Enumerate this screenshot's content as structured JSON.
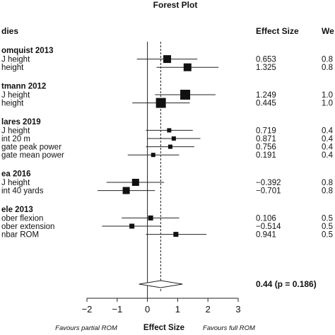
{
  "chart_data": {
    "type": "forest",
    "title": "Forest Plot",
    "columns": {
      "studies": "dies",
      "effect_size": "Effect Size",
      "weight": "We"
    },
    "xlabel": "Effect Size",
    "favours_left": "Favours partial ROM",
    "favours_right": "Favours full ROM",
    "xlim": [
      -2,
      3
    ],
    "xticks": [
      -2,
      -1,
      0,
      1,
      2,
      3
    ],
    "xtick_labels": [
      "−2",
      "−1",
      "0",
      "1",
      "2",
      "3"
    ],
    "summary": {
      "estimate": 0.44,
      "ci": [
        -0.28,
        1.16
      ],
      "label": "0.44 (p = 0.186)"
    },
    "groups": [
      {
        "study": "omquist 2013",
        "rows": [
          {
            "label": "J height",
            "es": 0.653,
            "es_text": "0.653",
            "ci": [
              -0.35,
              1.65
            ],
            "weight_text": "0.8",
            "size": 11
          },
          {
            "label": "height",
            "es": 1.325,
            "es_text": "1.325",
            "ci": [
              0.3,
              2.35
            ],
            "weight_text": "0.8",
            "size": 11
          }
        ]
      },
      {
        "study": "tmann 2012",
        "rows": [
          {
            "label": "J height",
            "es": 1.249,
            "es_text": "1.249",
            "ci": [
              0.25,
              2.25
            ],
            "weight_text": "1.0",
            "size": 14
          },
          {
            "label": "height",
            "es": 0.445,
            "es_text": "0.445",
            "ci": [
              -0.5,
              1.4
            ],
            "weight_text": "1.0",
            "size": 14
          }
        ]
      },
      {
        "study": "lares 2019",
        "rows": [
          {
            "label": "J height",
            "es": 0.719,
            "es_text": "0.719",
            "ci": [
              -0.05,
              1.5
            ],
            "weight_text": "0.4",
            "size": 6
          },
          {
            "label": "int 20 m",
            "es": 0.871,
            "es_text": "0.871",
            "ci": [
              0.0,
              1.75
            ],
            "weight_text": "0.4",
            "size": 6
          },
          {
            "label": "gate peak power",
            "es": 0.756,
            "es_text": "0.756",
            "ci": [
              -0.05,
              1.55
            ],
            "weight_text": "0.4",
            "size": 6
          },
          {
            "label": "gate mean power",
            "es": 0.191,
            "es_text": "0.191",
            "ci": [
              -0.65,
              1.05
            ],
            "weight_text": "0.4",
            "size": 6
          }
        ]
      },
      {
        "study": "ea 2016",
        "rows": [
          {
            "label": "J height",
            "es": -0.392,
            "es_text": "−0.392",
            "ci": [
              -1.35,
              0.55
            ],
            "weight_text": "0.8",
            "size": 10
          },
          {
            "label": "int 40 yards",
            "es": -0.701,
            "es_text": "−0.701",
            "ci": [
              -1.65,
              0.25
            ],
            "weight_text": "0.8",
            "size": 10
          }
        ]
      },
      {
        "study": "ele 2013",
        "rows": [
          {
            "label": "ober flexion",
            "es": 0.106,
            "es_text": "0.106",
            "ci": [
              -0.85,
              1.05
            ],
            "weight_text": "0.5",
            "size": 7
          },
          {
            "label": "ober extension",
            "es": -0.514,
            "es_text": "−0.514",
            "ci": [
              -1.5,
              0.45
            ],
            "weight_text": "0.5",
            "size": 7
          },
          {
            "label": "nbar ROM",
            "es": 0.941,
            "es_text": "0.941",
            "ci": [
              -0.05,
              1.95
            ],
            "weight_text": "0.5",
            "size": 7
          }
        ]
      }
    ]
  }
}
